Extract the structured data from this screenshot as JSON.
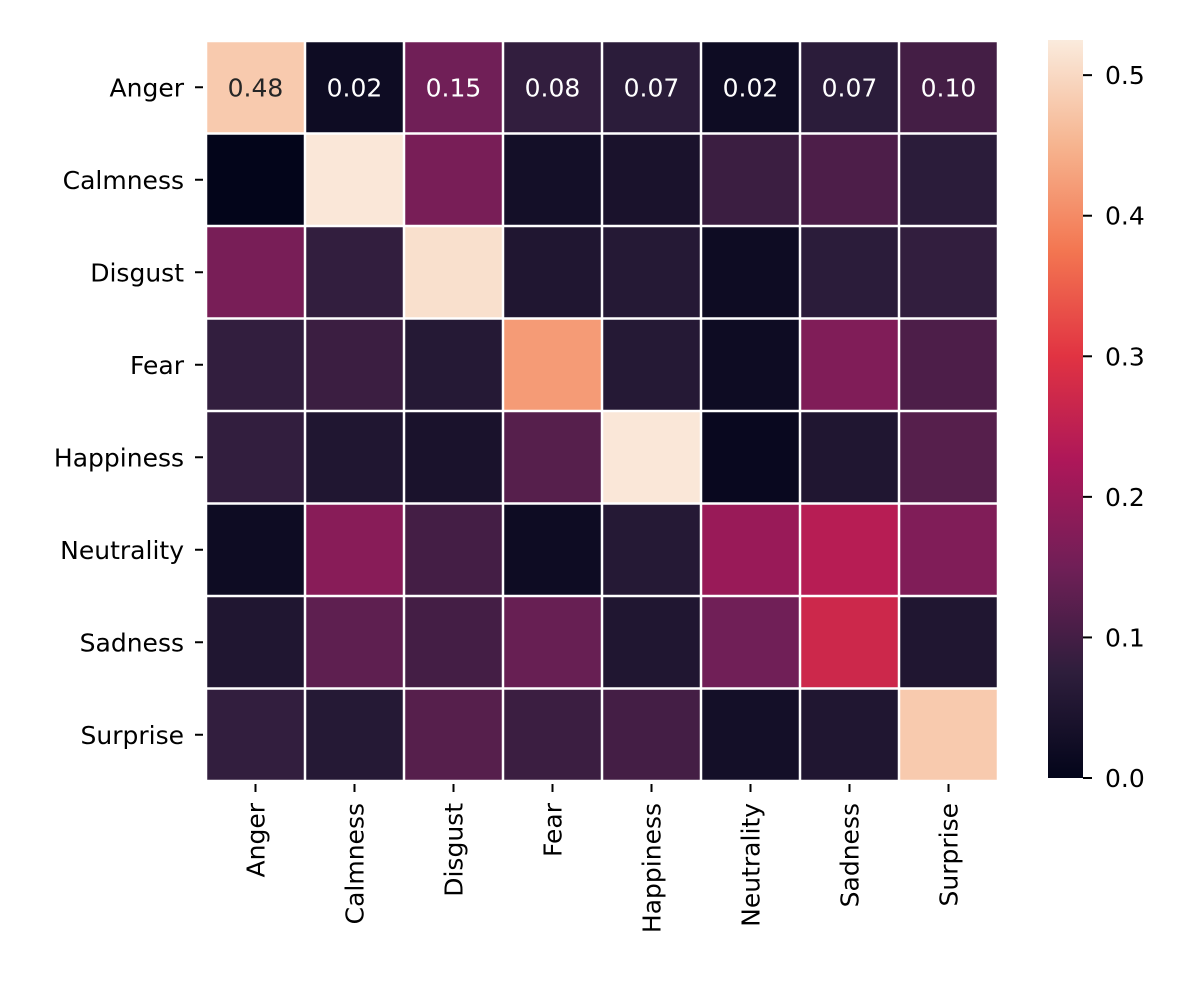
{
  "chart_data": {
    "type": "heatmap",
    "title": "",
    "xlabel": "",
    "ylabel": "",
    "rows": [
      "Anger",
      "Calmness",
      "Disgust",
      "Fear",
      "Happiness",
      "Neutrality",
      "Sadness",
      "Surprise"
    ],
    "columns": [
      "Anger",
      "Calmness",
      "Disgust",
      "Fear",
      "Happiness",
      "Neutrality",
      "Sadness",
      "Surprise"
    ],
    "values": [
      [
        0.48,
        0.02,
        0.15,
        0.08,
        0.07,
        0.02,
        0.07,
        0.1
      ],
      [
        0.0,
        0.52,
        0.16,
        0.03,
        0.04,
        0.09,
        0.11,
        0.07
      ],
      [
        0.16,
        0.08,
        0.51,
        0.05,
        0.06,
        0.02,
        0.07,
        0.08
      ],
      [
        0.08,
        0.09,
        0.06,
        0.42,
        0.06,
        0.02,
        0.17,
        0.11
      ],
      [
        0.08,
        0.05,
        0.04,
        0.12,
        0.52,
        0.01,
        0.05,
        0.12
      ],
      [
        0.02,
        0.18,
        0.1,
        0.02,
        0.06,
        0.2,
        0.24,
        0.17
      ],
      [
        0.05,
        0.13,
        0.1,
        0.14,
        0.05,
        0.15,
        0.27,
        0.05
      ],
      [
        0.08,
        0.06,
        0.12,
        0.09,
        0.1,
        0.03,
        0.05,
        0.48
      ]
    ],
    "annotated_row": 0,
    "colorbar": {
      "vmin": 0.0,
      "vmax": 0.525,
      "ticks": [
        "0.0",
        "0.1",
        "0.2",
        "0.3",
        "0.4",
        "0.5"
      ],
      "tick_values": [
        0.0,
        0.1,
        0.2,
        0.3,
        0.4,
        0.5
      ],
      "colormap": "rocket",
      "colors": [
        "#03051a",
        "#2e1e3c",
        "#701f57",
        "#ad1759",
        "#e13342",
        "#f37651",
        "#f6b48f",
        "#faebdd"
      ]
    },
    "grid": false,
    "legend": "colorbar-right",
    "cell_separator_color": "#ffffff"
  }
}
